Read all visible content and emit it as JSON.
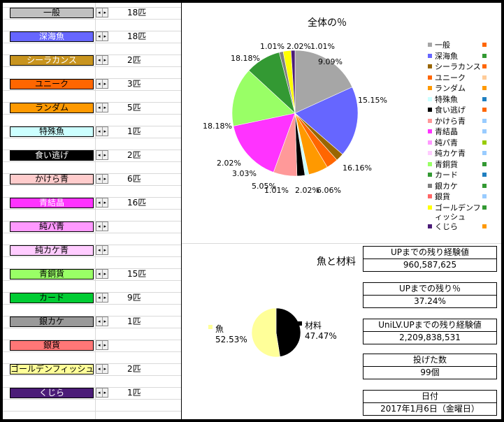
{
  "items": [
    {
      "label": "一般",
      "color": "#C0C0C0",
      "text_color": "#000000",
      "count": "18匹"
    },
    {
      "label": "深海魚",
      "color": "#6666FF",
      "text_color": "#FFFFFF",
      "count": "18匹"
    },
    {
      "label": "シーラカンス",
      "color": "#C8941E",
      "text_color": "#FFFFFF",
      "count": "2匹"
    },
    {
      "label": "ユニーク",
      "color": "#FF6600",
      "text_color": "#000000",
      "count": "3匹"
    },
    {
      "label": "ランダム",
      "color": "#FF9900",
      "text_color": "#000000",
      "count": "5匹"
    },
    {
      "label": "特殊魚",
      "color": "#CCFFFF",
      "text_color": "#000000",
      "count": "1匹"
    },
    {
      "label": "食い逃げ",
      "color": "#000000",
      "text_color": "#FFFFFF",
      "count": "2匹"
    },
    {
      "label": "かけら青",
      "color": "#FFCCCC",
      "text_color": "#000000",
      "count": "6匹"
    },
    {
      "label": "青結晶",
      "color": "#FF33FF",
      "text_color": "#FFFFFF",
      "count": "16匹"
    },
    {
      "label": "純パ青",
      "color": "#FF99FF",
      "text_color": "#000000",
      "count": ""
    },
    {
      "label": "純カケ青",
      "color": "#FFCCFF",
      "text_color": "#000000",
      "count": ""
    },
    {
      "label": "青銅貨",
      "color": "#99FF66",
      "text_color": "#000000",
      "count": "15匹"
    },
    {
      "label": "カード",
      "color": "#00CC33",
      "text_color": "#000000",
      "count": "9匹"
    },
    {
      "label": "銀カケ",
      "color": "#999999",
      "text_color": "#000000",
      "count": "1匹"
    },
    {
      "label": "銀貨",
      "color": "#FF7777",
      "text_color": "#000000",
      "count": ""
    },
    {
      "label": "ゴールデンフィッシュ",
      "color": "#FFFF99",
      "text_color": "#000000",
      "count": "2匹"
    },
    {
      "label": "くじら",
      "color": "#4B1C78",
      "text_color": "#FFFFFF",
      "count": "1匹"
    }
  ],
  "spin_icons": [
    "◂",
    "▸"
  ],
  "chart_data": [
    {
      "type": "pie",
      "title": "全体の％",
      "legend_placement": "right",
      "labels": [
        "一般",
        "深海魚",
        "シーラカンス",
        "ユニーク",
        "ランダム",
        "特殊魚",
        "食い逃げ",
        "かけら青",
        "青結晶",
        "純パ青",
        "純カケ青",
        "青銅貨",
        "カード",
        "銀カケ",
        "銀貨",
        "ゴールデンフィッシュ",
        "くじら"
      ],
      "values": [
        18.18,
        18.18,
        2.02,
        3.03,
        5.05,
        1.01,
        2.02,
        6.06,
        16.16,
        0,
        0,
        15.15,
        9.09,
        1.01,
        0,
        2.02,
        1.01
      ],
      "value_labels": [
        "18.18%",
        "18.18%",
        "2.02%",
        "3.03%",
        "5.05%",
        "1.01%",
        "2.02%",
        "6.06%",
        "16.16%",
        "",
        "",
        "15.15%",
        "9.09%",
        "1.01%",
        "",
        "2.02%",
        "1.01%"
      ],
      "colors": [
        "#A6A6A6",
        "#6666FF",
        "#996600",
        "#FF6600",
        "#FF9900",
        "#CCFFFF",
        "#000000",
        "#FF9999",
        "#FF33FF",
        "#FF99FF",
        "#FFCCFF",
        "#99FF66",
        "#339933",
        "#808080",
        "#FF6666",
        "#FFFF00",
        "#4B1C78"
      ],
      "legend_side_colors": [
        "#FF6600",
        "#339933",
        "#FF6600",
        "#FFCC99",
        "#FF9900",
        "#1F7FC0",
        "#FF6600",
        "#99CCFF",
        "#99CCFF",
        "#99CC00",
        "#99CCFF",
        "#339933",
        "#1F7FC0",
        "#339933",
        "#99CCFF",
        "#339933",
        "#FF9900"
      ]
    },
    {
      "type": "pie",
      "title": "魚と材料",
      "labels": [
        "魚",
        "材料"
      ],
      "values": [
        52.53,
        47.47
      ],
      "value_labels": [
        "52.53%",
        "47.47%"
      ],
      "colors": [
        "#FFFF99",
        "#000000"
      ]
    }
  ],
  "info": [
    {
      "label": "UPまでの残り経験値",
      "value": "960,587,625"
    },
    {
      "label": "UPまでの残り％",
      "value": "37.24%"
    },
    {
      "label": "UniLV.UPまでの残り経験値",
      "value": "2,209,838,531"
    },
    {
      "label": "投げた数",
      "value": "99個"
    },
    {
      "label": "日付",
      "value": "2017年1月6日（金曜日）"
    }
  ]
}
